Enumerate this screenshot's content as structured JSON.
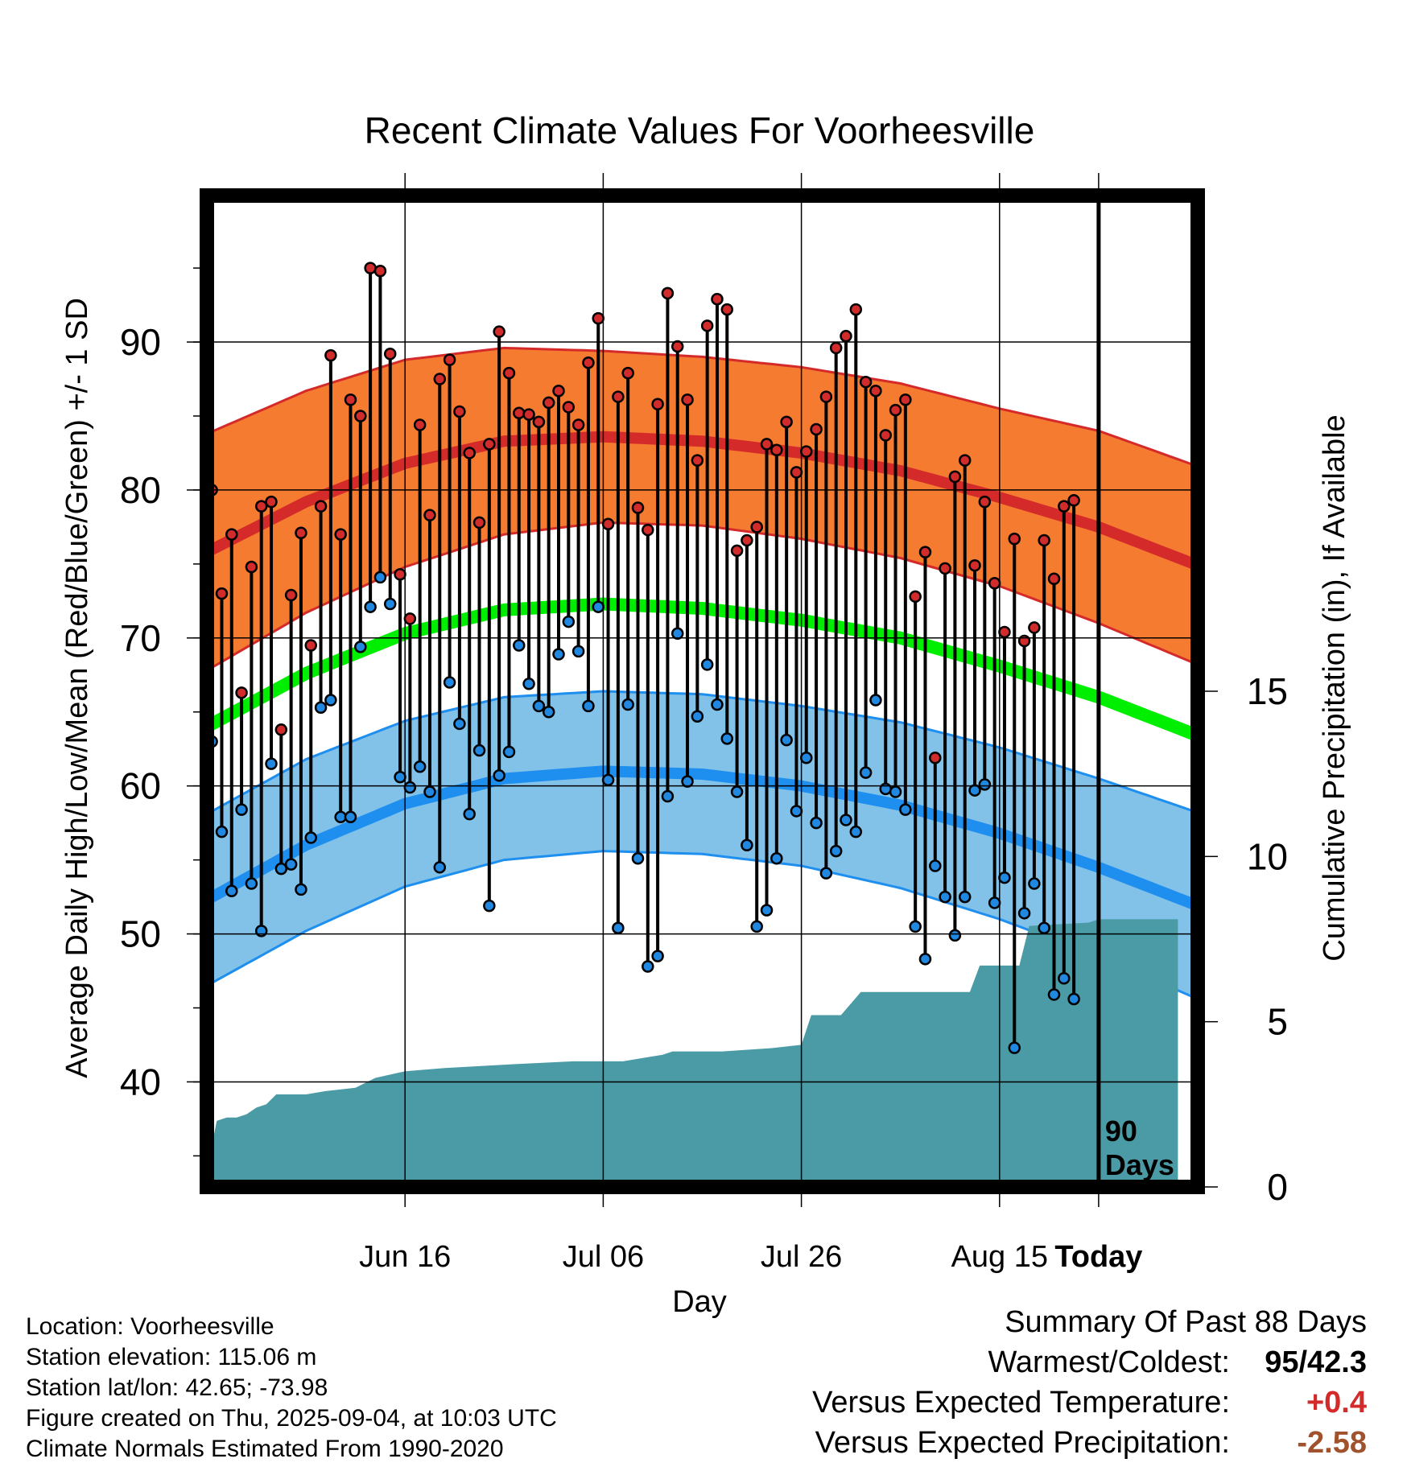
{
  "chart_data": {
    "type": "line",
    "title": "Recent Climate Values For Voorheesville",
    "xlabel": "Day",
    "ylabel_left": "Average Daily High/Low/Mean (Red/Blue/Green) +/- 1 SD",
    "ylabel_right": "Cumulative Precipitation (in), If Available",
    "x_tick_labels": [
      "Jun 16",
      "Jul 06",
      "Jul 26",
      "Aug 15",
      "Today"
    ],
    "y_left_ticks": [
      "40",
      "50",
      "60",
      "70",
      "80",
      "90"
    ],
    "y_right_ticks": [
      "0",
      "5",
      "10",
      "15"
    ],
    "xlim_days": [
      -90,
      10
    ],
    "ylim_left": [
      32.9,
      99.9
    ],
    "ylim_right": [
      0,
      30
    ],
    "annotation": "90\nDays",
    "colors": {
      "high_band": "#F47B30",
      "high_line": "#D42A2A",
      "low_band": "#82C1E8",
      "low_line": "#1E8FEF",
      "mean_line": "#00EE00",
      "precip": "#4A9BA5",
      "high_marker": "#D22B2B",
      "low_marker": "#2088E0"
    },
    "normals": {
      "x_days": [
        -90,
        -80,
        -70,
        -60,
        -50,
        -40,
        -30,
        -20,
        -10,
        0,
        10
      ],
      "high_mean": [
        75.8,
        79.2,
        81.8,
        83.3,
        83.6,
        83.3,
        82.5,
        81.3,
        79.5,
        77.5,
        74.9
      ],
      "high_sd": [
        8.0,
        7.5,
        7.0,
        6.3,
        5.8,
        5.7,
        5.8,
        5.9,
        6.0,
        6.5,
        6.7
      ],
      "low_mean": [
        52.3,
        56.0,
        58.8,
        60.5,
        61.0,
        60.8,
        60.0,
        58.7,
        56.8,
        54.5,
        51.9
      ],
      "low_sd": [
        5.8,
        5.8,
        5.6,
        5.5,
        5.4,
        5.4,
        5.4,
        5.6,
        5.8,
        6.0,
        6.3
      ],
      "mean": [
        64.0,
        67.6,
        70.3,
        71.9,
        72.3,
        72.0,
        71.2,
        70.0,
        68.1,
        66.0,
        63.4
      ]
    },
    "daily": {
      "high": [
        80.0,
        73.0,
        77.0,
        66.3,
        74.8,
        78.9,
        79.2,
        63.8,
        72.9,
        77.1,
        69.5,
        78.9,
        89.1,
        77.0,
        86.1,
        85.0,
        95.0,
        94.8,
        89.2,
        74.3,
        71.3,
        84.4,
        78.3,
        87.5,
        88.8,
        85.3,
        82.5,
        77.8,
        83.1,
        90.7,
        87.9,
        85.2,
        85.1,
        84.6,
        85.9,
        86.7,
        85.6,
        84.4,
        88.6,
        91.6,
        77.7,
        86.3,
        87.9,
        78.8,
        77.3,
        85.8,
        93.3,
        89.7,
        86.1,
        82.0,
        91.1,
        92.9,
        92.2,
        75.9,
        76.6,
        77.5,
        83.1,
        82.7,
        84.6,
        81.2,
        82.6,
        84.1,
        86.3,
        89.6,
        90.4,
        92.2,
        87.3,
        86.7,
        83.7,
        85.4,
        86.1,
        72.8,
        75.8,
        61.9,
        74.7,
        80.9,
        82.0,
        74.9,
        79.2,
        73.7,
        70.4,
        76.7,
        69.8,
        70.7,
        76.6,
        74.0,
        78.9,
        79.3
      ],
      "low": [
        63.0,
        56.9,
        52.9,
        58.4,
        53.4,
        50.2,
        61.5,
        54.4,
        54.7,
        53.0,
        56.5,
        65.3,
        65.8,
        57.9,
        57.9,
        69.4,
        72.1,
        74.1,
        72.3,
        60.6,
        59.9,
        61.3,
        59.6,
        54.5,
        67.0,
        64.2,
        58.1,
        62.4,
        51.9,
        60.7,
        62.3,
        69.5,
        66.9,
        65.4,
        65.0,
        68.9,
        71.1,
        69.1,
        65.4,
        72.1,
        60.4,
        50.4,
        65.5,
        55.1,
        47.8,
        48.5,
        59.3,
        70.3,
        60.3,
        64.7,
        68.2,
        65.5,
        63.2,
        59.6,
        56.0,
        50.5,
        51.6,
        55.1,
        63.1,
        58.3,
        61.9,
        57.5,
        54.1,
        55.6,
        57.7,
        56.9,
        60.9,
        65.8,
        59.8,
        59.6,
        58.4,
        50.5,
        48.3,
        54.6,
        52.5,
        49.9,
        52.5,
        59.7,
        60.1,
        52.1,
        53.8,
        42.3,
        51.4,
        53.4,
        50.4,
        45.9,
        47.0,
        45.6
      ]
    },
    "precip_cumulative": [
      [
        -90,
        0.5
      ],
      [
        -89,
        2.0
      ],
      [
        -88,
        2.1
      ],
      [
        -87,
        2.1
      ],
      [
        -86,
        2.2
      ],
      [
        -85,
        2.4
      ],
      [
        -84,
        2.5
      ],
      [
        -83,
        2.8
      ],
      [
        -80,
        2.8
      ],
      [
        -78,
        2.9
      ],
      [
        -75,
        3.0
      ],
      [
        -73,
        3.3
      ],
      [
        -70,
        3.5
      ],
      [
        -66,
        3.6
      ],
      [
        -60,
        3.7
      ],
      [
        -53,
        3.8
      ],
      [
        -48,
        3.8
      ],
      [
        -46,
        3.9
      ],
      [
        -44,
        4.0
      ],
      [
        -43,
        4.1
      ],
      [
        -38,
        4.1
      ],
      [
        -33,
        4.2
      ],
      [
        -30,
        4.3
      ],
      [
        -29,
        5.2
      ],
      [
        -26,
        5.2
      ],
      [
        -24,
        5.9
      ],
      [
        -20,
        5.9
      ],
      [
        -13,
        5.9
      ],
      [
        -12,
        6.7
      ],
      [
        -8,
        6.7
      ],
      [
        -7,
        7.9
      ],
      [
        -1,
        8.0
      ],
      [
        0,
        8.1
      ],
      [
        8,
        8.1
      ]
    ]
  },
  "location_info": [
    "Location: Voorheesville",
    "Station elevation: 115.06 m",
    "Station lat/lon: 42.65; -73.98",
    "Figure created on Thu, 2025-09-04, at 10:03 UTC",
    "Climate Normals Estimated From 1990-2020"
  ],
  "summary": {
    "title": "Summary Of Past 88 Days",
    "warmest_coldest_label": "Warmest/Coldest:",
    "warmest_coldest_value": "95/42.3",
    "temp_label": "Versus Expected Temperature:",
    "temp_value": "+0.4",
    "temp_color": "#D42A2A",
    "precip_label": "Versus Expected Precipitation:",
    "precip_value": "-2.58",
    "precip_color": "#A0522D"
  }
}
